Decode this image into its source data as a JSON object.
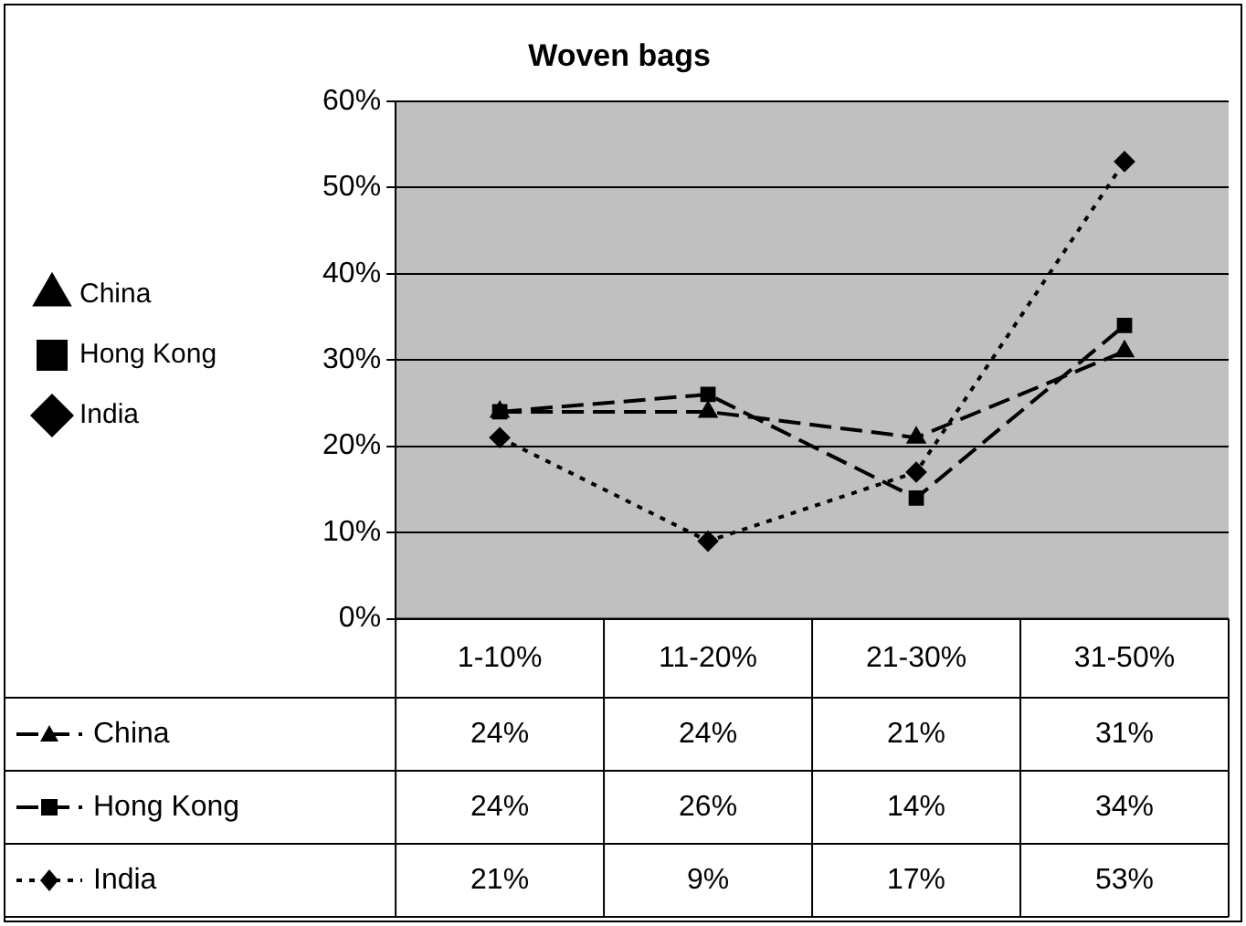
{
  "chart_data": {
    "type": "line",
    "title": "Woven bags",
    "categories": [
      "1-10%",
      "11-20%",
      "21-30%",
      "31-50%"
    ],
    "series": [
      {
        "name": "China",
        "color": "#000000",
        "values": [
          24,
          24,
          21,
          31
        ],
        "value_labels": [
          "24%",
          "24%",
          "21%",
          "31%"
        ],
        "marker": "triangle",
        "line_style": "dashed"
      },
      {
        "name": "Hong Kong",
        "color": "#000000",
        "values": [
          24,
          26,
          14,
          34
        ],
        "value_labels": [
          "24%",
          "26%",
          "14%",
          "34%"
        ],
        "marker": "square",
        "line_style": "dashed"
      },
      {
        "name": "India",
        "color": "#000000",
        "values": [
          21,
          9,
          17,
          53
        ],
        "value_labels": [
          "21%",
          "9%",
          "17%",
          "53%"
        ],
        "marker": "diamond",
        "line_style": "dotted"
      }
    ],
    "ylim": [
      0,
      60
    ],
    "yticks": [
      {
        "value": 0,
        "label": "0%"
      },
      {
        "value": 10,
        "label": "10%"
      },
      {
        "value": 20,
        "label": "20%"
      },
      {
        "value": 30,
        "label": "30%"
      },
      {
        "value": 40,
        "label": "40%"
      },
      {
        "value": 50,
        "label": "50%"
      },
      {
        "value": 60,
        "label": "60%"
      }
    ],
    "grid": "y",
    "legend": "left"
  }
}
